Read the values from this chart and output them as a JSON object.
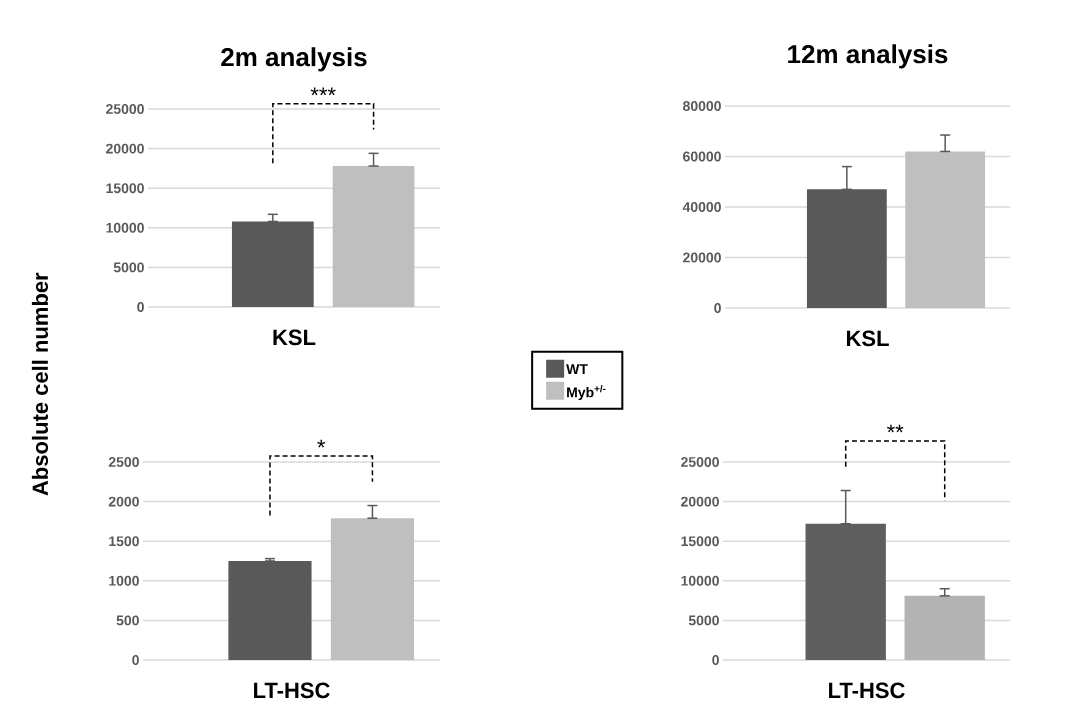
{
  "chart_data": [
    {
      "type": "bar",
      "title": "2m analysis",
      "xlabel": "KSL",
      "ylabel": "Absolute cell number",
      "categories": [
        null
      ],
      "series": [
        {
          "name": "WT",
          "color": "#595959",
          "values": [
            10800
          ],
          "errors": [
            [
              10800,
              11700
            ]
          ]
        },
        {
          "name": "Myb$^{+/-}$",
          "color": "#bfbfbf",
          "values": [
            17800
          ],
          "errors": [
            [
              17800,
              19400
            ]
          ]
        }
      ],
      "ylim": [
        0,
        25000
      ],
      "yticks": [
        0,
        5000,
        10000,
        15000,
        20000,
        25000
      ],
      "grid": "y",
      "legend": "bottom right",
      "annotations": [
        "***"
      ]
    },
    {
      "type": "bar",
      "title": "12m analysis",
      "xlabel": "KSL",
      "categories": [
        null
      ],
      "series": [
        {
          "color": "#595959",
          "values": [
            47000
          ],
          "errors": [
            [
              47000,
              56000
            ]
          ]
        },
        {
          "color": "#bfbfbf",
          "values": [
            62000
          ],
          "errors": [
            [
              62000,
              68500
            ]
          ]
        }
      ],
      "ylim": [
        0,
        80000
      ],
      "yticks": [
        0,
        20000,
        40000,
        60000,
        80000
      ],
      "grid": "y"
    },
    {
      "type": "bar",
      "xlabel": "LT-HSC",
      "categories": [
        null
      ],
      "series": [
        {
          "color": "#595959",
          "values": [
            1250
          ],
          "errors": [
            [
              1250,
              1280
            ]
          ]
        },
        {
          "color": "#bfbfbf",
          "values": [
            1790
          ],
          "errors": [
            [
              1790,
              1950
            ]
          ]
        }
      ],
      "ylim": [
        0,
        2500
      ],
      "yticks": [
        0,
        500,
        1000,
        1500,
        2000,
        2500
      ],
      "grid": "y",
      "annotations": [
        "*"
      ]
    },
    {
      "type": "bar",
      "xlabel": "LT-HSC",
      "categories": [
        null
      ],
      "series": [
        {
          "color": "#5f5f5f",
          "values": [
            17200
          ],
          "errors": [
            [
              17200,
              21400
            ]
          ]
        },
        {
          "color": "#b3b3b3",
          "values": [
            8100
          ],
          "errors": [
            [
              8100,
              9000
            ]
          ]
        }
      ],
      "ylim": [
        0,
        25000
      ],
      "yticks": [
        0,
        5000,
        10000,
        15000,
        20000,
        25000
      ],
      "grid": "y",
      "annotations": [
        "**"
      ]
    }
  ]
}
